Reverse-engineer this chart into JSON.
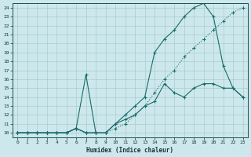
{
  "xlabel": "Humidex (Indice chaleur)",
  "ylabel": "",
  "bg_color": "#cde8ec",
  "grid_color": "#a8ccd0",
  "line_color": "#1a6b6b",
  "xlim": [
    -0.5,
    23.5
  ],
  "ylim": [
    9.5,
    24.5
  ],
  "xticks": [
    0,
    1,
    2,
    3,
    4,
    5,
    6,
    7,
    8,
    9,
    10,
    11,
    12,
    13,
    14,
    15,
    16,
    17,
    18,
    19,
    20,
    21,
    22,
    23
  ],
  "yticks": [
    10,
    11,
    12,
    13,
    14,
    15,
    16,
    17,
    18,
    19,
    20,
    21,
    22,
    23,
    24
  ],
  "lines": [
    {
      "x": [
        0,
        1,
        2,
        3,
        4,
        5,
        6,
        7,
        8,
        9,
        10,
        11,
        12,
        13,
        14,
        15,
        16,
        17,
        18,
        19,
        20,
        21,
        22,
        23
      ],
      "y": [
        10,
        10,
        10,
        10,
        10,
        10,
        10.5,
        10,
        10,
        10,
        10.5,
        11,
        12,
        13,
        14.5,
        16,
        17,
        18.5,
        19.5,
        20.5,
        21.5,
        22.5,
        23.5,
        24
      ],
      "dotted": true
    },
    {
      "x": [
        0,
        1,
        2,
        3,
        4,
        5,
        6,
        7,
        8,
        9,
        10,
        11,
        12,
        13,
        14,
        15,
        16,
        17,
        18,
        19,
        20,
        21,
        22,
        23
      ],
      "y": [
        10,
        10,
        10,
        10,
        10,
        10,
        10.5,
        10,
        10,
        10,
        11,
        12,
        13,
        14,
        19,
        20.5,
        21.5,
        23,
        24,
        24.5,
        23,
        17.5,
        15,
        14
      ],
      "dotted": false
    },
    {
      "x": [
        0,
        1,
        2,
        3,
        4,
        5,
        6,
        7,
        8
      ],
      "y": [
        10,
        10,
        10,
        10,
        10,
        10,
        10.5,
        16.5,
        10
      ],
      "dotted": false
    },
    {
      "x": [
        0,
        1,
        2,
        3,
        4,
        5,
        6,
        7,
        8,
        9,
        10,
        11,
        12,
        13,
        14,
        15,
        16,
        17,
        18,
        19,
        20,
        21,
        22,
        23
      ],
      "y": [
        10,
        10,
        10,
        10,
        10,
        10,
        10.5,
        10,
        10,
        10,
        11,
        11.5,
        12,
        13,
        13.5,
        15.5,
        14.5,
        14,
        15,
        15.5,
        15.5,
        15,
        15,
        14
      ],
      "dotted": false
    }
  ]
}
